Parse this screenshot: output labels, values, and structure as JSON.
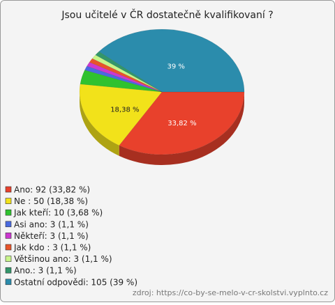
{
  "chart_data": {
    "type": "pie",
    "title": "Jsou učitelé v ČR dostatečně kvalifikovaní ?",
    "categories": [
      "Ano: 92 (33,82 %)",
      "Ne : 50 (18,38 %)",
      "Jak kteří: 10 (3,68 %)",
      "Asi ano: 3 (1,1 %)",
      "Někteří: 3 (1,1 %)",
      "Jak kdo : 3 (1,1 %)",
      "Většinou ano: 3 (1,1 %)",
      "Ano.: 3 (1,1 %)",
      "Ostatní odpovědi: 105 (39 %)"
    ],
    "values": [
      33.82,
      18.38,
      3.68,
      1.1,
      1.1,
      1.1,
      1.1,
      1.1,
      39
    ],
    "value_labels": [
      "33,82 %",
      "18,38 %",
      null,
      null,
      null,
      null,
      null,
      null,
      "39 %"
    ],
    "colors": [
      "#e8412c",
      "#f2e21a",
      "#2fc22f",
      "#4a6ae0",
      "#cc38d0",
      "#e8542a",
      "#c8f58a",
      "#33966a",
      "#2b8cac"
    ],
    "source": "zdroj: https://co-by-se-melo-v-cr-skolstvi.vyplnto.cz"
  }
}
